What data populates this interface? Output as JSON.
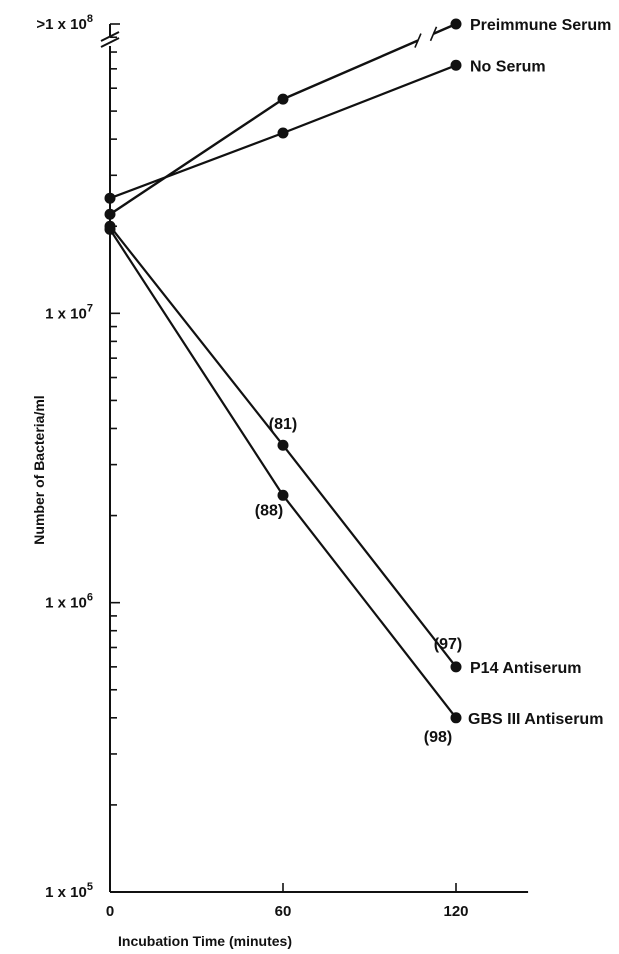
{
  "chart_data": {
    "type": "line",
    "title": "",
    "xlabel": "Incubation Time (minutes)",
    "ylabel": "Number of Bacteria/ml",
    "x_scale": "linear",
    "y_scale": "log",
    "xlim": [
      0,
      145
    ],
    "ylim": [
      100000,
      100000000
    ],
    "grid": false,
    "x": [
      0,
      60,
      120
    ],
    "x_tick_labels": [
      "0",
      "60",
      "120"
    ],
    "y_tick_labels": [
      {
        "value": 100000,
        "base": "1 x 10",
        "exp": "5"
      },
      {
        "value": 1000000,
        "base": "1 x 10",
        "exp": "6"
      },
      {
        "value": 10000000,
        "base": "1 x 10",
        "exp": "7"
      },
      {
        "value": 100000000,
        "base": ">1 x 10",
        "exp": "8"
      }
    ],
    "series": [
      {
        "name": "Preimmune Serum",
        "values": [
          22000000,
          55000000,
          100000000
        ],
        "axis_break_before_last": true
      },
      {
        "name": "No Serum",
        "values": [
          25000000,
          42000000,
          72000000
        ]
      },
      {
        "name": "P14 Antiserum",
        "values": [
          20000000,
          3500000,
          600000
        ],
        "point_labels": [
          "",
          "(81)",
          "(97)"
        ]
      },
      {
        "name": "GBS III Antiserum",
        "values": [
          19500000,
          2350000,
          400000
        ],
        "point_labels": [
          "",
          "(88)",
          "(98)"
        ]
      }
    ]
  }
}
